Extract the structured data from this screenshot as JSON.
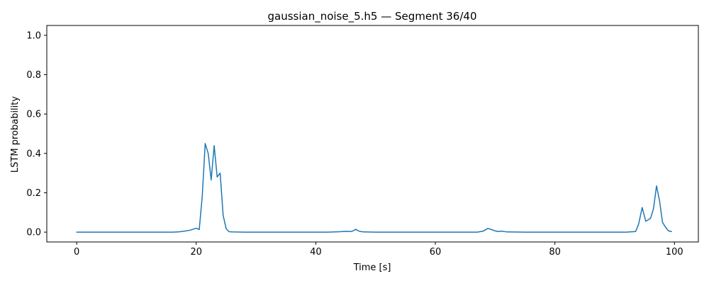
{
  "chart_data": {
    "type": "line",
    "title": "gaussian_noise_5.h5 — Segment 36/40",
    "xlabel": "Time [s]",
    "ylabel": "LSTM probability",
    "xlim": [
      -5,
      104
    ],
    "ylim": [
      -0.05,
      1.05
    ],
    "xticks": [
      0,
      20,
      40,
      60,
      80,
      100
    ],
    "yticks": [
      0.0,
      0.2,
      0.4,
      0.6,
      0.8,
      1.0
    ],
    "xtick_labels": [
      "0",
      "20",
      "40",
      "60",
      "80",
      "100"
    ],
    "ytick_labels": [
      "0.0",
      "0.2",
      "0.4",
      "0.6",
      "0.8",
      "1.0"
    ],
    "grid": false,
    "series": [
      {
        "color": "#1f77b4",
        "x": [
          0,
          2,
          4,
          6,
          8,
          10,
          12,
          14,
          16,
          17,
          18,
          19,
          20,
          20.5,
          21,
          21.5,
          22,
          22.5,
          23,
          23.5,
          24,
          24.5,
          25,
          25.5,
          26,
          28,
          30,
          35,
          40,
          42,
          44,
          45,
          46,
          46.7,
          47.3,
          48,
          50,
          55,
          60,
          65,
          67,
          68,
          68.8,
          69.5,
          70,
          70.5,
          71,
          72,
          75,
          80,
          85,
          90,
          92,
          93.5,
          94,
          94.6,
          95.2,
          96,
          96.5,
          97,
          97.5,
          98,
          98.5,
          99,
          99.5
        ],
        "y": [
          0,
          0,
          0,
          0,
          0,
          0,
          0,
          0,
          0,
          0.001,
          0.005,
          0.01,
          0.02,
          0.013,
          0.18,
          0.45,
          0.4,
          0.265,
          0.44,
          0.28,
          0.3,
          0.085,
          0.018,
          0.002,
          0.001,
          0,
          0,
          0,
          0,
          0,
          0.002,
          0.004,
          0.003,
          0.014,
          0.004,
          0.001,
          0,
          0,
          0,
          0,
          0,
          0.005,
          0.019,
          0.012,
          0.006,
          0.003,
          0.005,
          0.001,
          0,
          0,
          0,
          0,
          0,
          0.003,
          0.04,
          0.125,
          0.055,
          0.07,
          0.12,
          0.235,
          0.16,
          0.05,
          0.025,
          0.006,
          0.003
        ]
      }
    ]
  }
}
